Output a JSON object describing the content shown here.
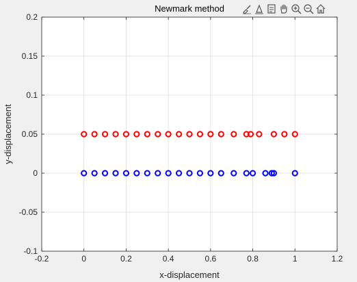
{
  "chart_data": {
    "type": "scatter",
    "title": "Newmark method",
    "xlabel": "x-displacement",
    "ylabel": "y-displacement",
    "xlim": [
      -0.2,
      1.2
    ],
    "ylim": [
      -0.1,
      0.2
    ],
    "xticks": [
      -0.2,
      0,
      0.2,
      0.4,
      0.6,
      0.8,
      1,
      1.2
    ],
    "xtick_labels": [
      "-0.2",
      "0",
      "0.2",
      "0.4",
      "0.6",
      "0.8",
      "1",
      "1.2"
    ],
    "yticks": [
      -0.1,
      -0.05,
      0,
      0.05,
      0.1,
      0.15,
      0.2
    ],
    "ytick_labels": [
      "-0.1",
      "-0.05",
      "0",
      "0.05",
      "0.1",
      "0.15",
      "0.2"
    ],
    "grid": true,
    "marker": "circle-open",
    "series": [
      {
        "color": "#ff0000",
        "x": [
          0,
          0.05,
          0.1,
          0.15,
          0.2,
          0.25,
          0.3,
          0.35,
          0.4,
          0.45,
          0.5,
          0.55,
          0.6,
          0.65,
          0.71,
          0.77,
          0.79,
          0.83,
          0.9,
          0.95,
          1.0
        ],
        "y": [
          0.05,
          0.05,
          0.05,
          0.05,
          0.05,
          0.05,
          0.05,
          0.05,
          0.05,
          0.05,
          0.05,
          0.05,
          0.05,
          0.05,
          0.05,
          0.05,
          0.05,
          0.05,
          0.05,
          0.05,
          0.05
        ]
      },
      {
        "color": "#0000ff",
        "x": [
          0,
          0.05,
          0.1,
          0.15,
          0.2,
          0.25,
          0.3,
          0.35,
          0.4,
          0.45,
          0.5,
          0.55,
          0.6,
          0.65,
          0.71,
          0.77,
          0.8,
          0.86,
          0.89,
          0.9,
          1.0
        ],
        "y": [
          0,
          0,
          0,
          0,
          0,
          0,
          0,
          0,
          0,
          0,
          0,
          0,
          0,
          0,
          0,
          0,
          0,
          0,
          0,
          0,
          0
        ]
      }
    ]
  },
  "toolbar": {
    "icons": [
      "brush-icon",
      "data-tips-icon",
      "legend-icon",
      "pan-icon",
      "zoom-in-icon",
      "zoom-out-icon",
      "home-icon"
    ]
  }
}
